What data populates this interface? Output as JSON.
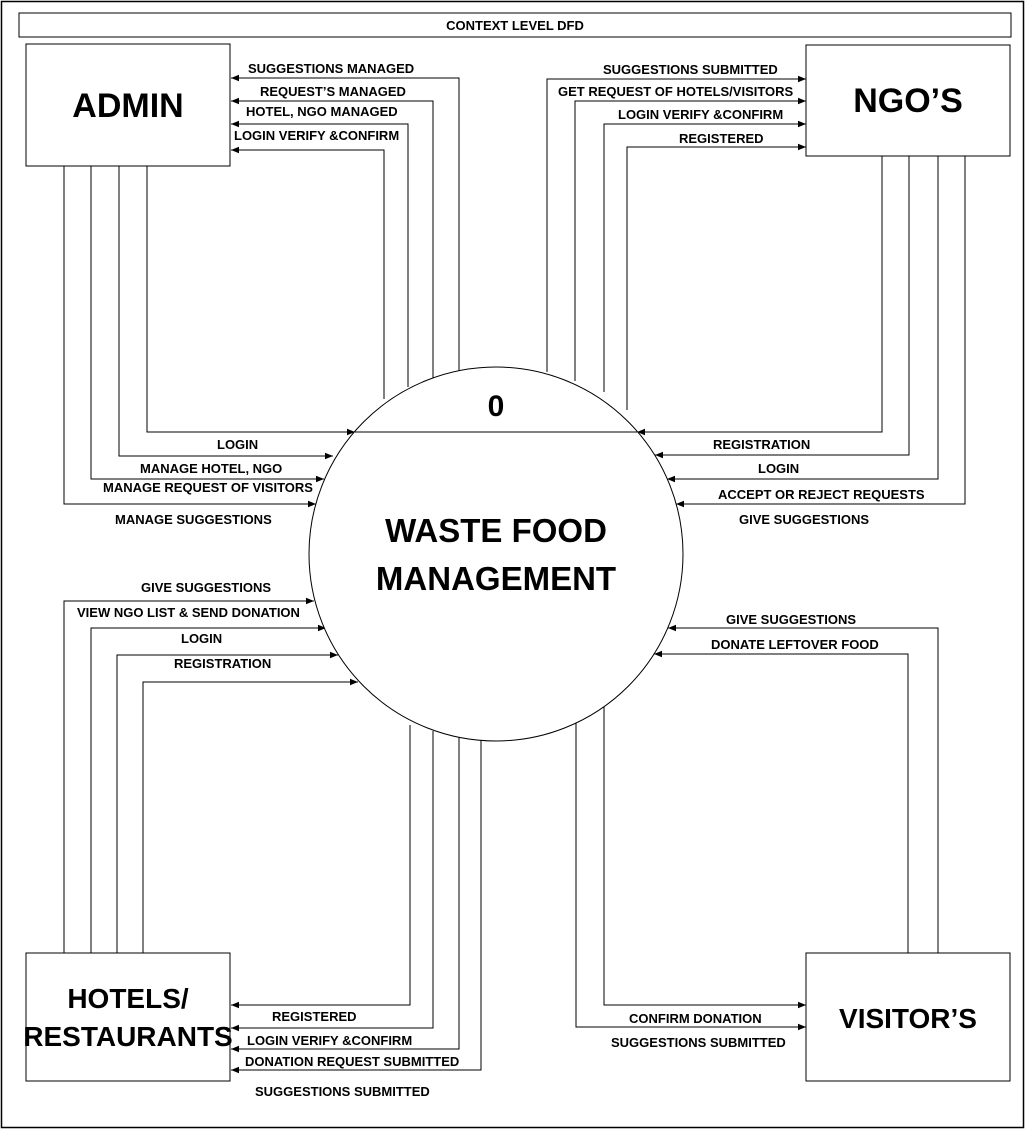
{
  "title": "CONTEXT LEVEL DFD",
  "process": {
    "number": "0",
    "name_line1": "WASTE FOOD",
    "name_line2": "MANAGEMENT"
  },
  "entities": {
    "admin": "ADMIN",
    "ngo": "NGO’S",
    "hotels_line1": "HOTELS/",
    "hotels_line2": "RESTAURANTS",
    "visitor": "VISITOR’S"
  },
  "flows": {
    "admin_in": [
      "SUGGESTIONS MANAGED",
      "REQUEST’S MANAGED",
      "HOTEL, NGO  MANAGED",
      "LOGIN VERIFY &CONFIRM"
    ],
    "admin_out": [
      "LOGIN",
      "MANAGE HOTEL, NGO",
      "MANAGE REQUEST OF VISITORS",
      "MANAGE SUGGESTIONS"
    ],
    "ngo_in": [
      "SUGGESTIONS  SUBMITTED",
      "GET REQUEST OF HOTELS/VISITORS",
      "LOGIN VERIFY &CONFIRM",
      "REGISTERED"
    ],
    "ngo_out": [
      "REGISTRATION",
      "LOGIN",
      "ACCEPT OR REJECT REQUESTS",
      "GIVE SUGGESTIONS"
    ],
    "hotels_out": [
      "GIVE SUGGESTIONS",
      "VIEW NGO LIST & SEND DONATION",
      "LOGIN",
      "REGISTRATION"
    ],
    "hotels_in": [
      "REGISTERED",
      "LOGIN VERIFY &CONFIRM",
      "DONATION REQUEST SUBMITTED",
      "SUGGESTIONS  SUBMITTED"
    ],
    "visitor_out": [
      "GIVE SUGGESTIONS",
      "DONATE LEFTOVER FOOD"
    ],
    "visitor_in": [
      "CONFIRM DONATION",
      "SUGGESTIONS  SUBMITTED"
    ]
  }
}
